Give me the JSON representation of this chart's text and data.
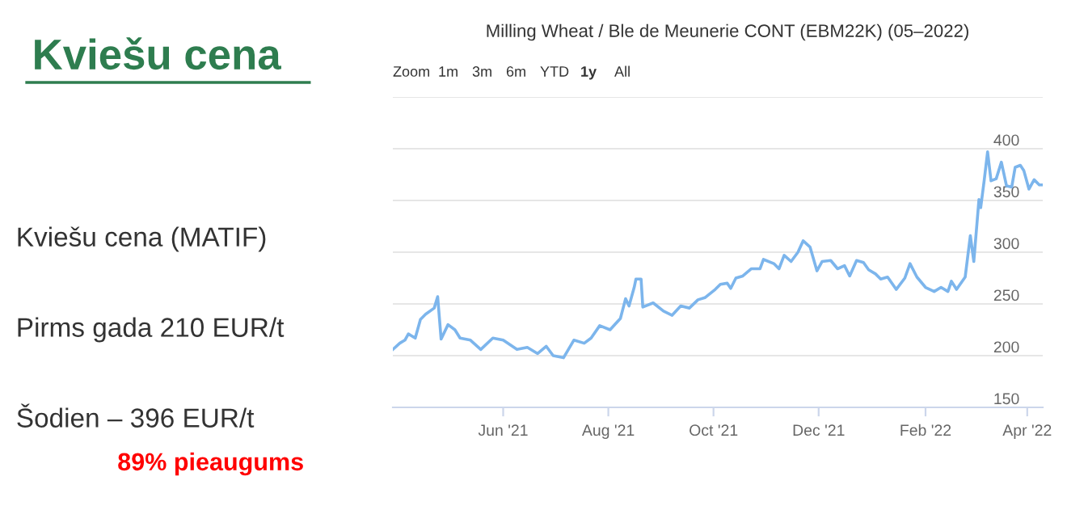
{
  "chart_data": {
    "type": "line",
    "title": "Milling Wheat / Ble de Meunerie CONT (EBM22K) (05–2022)",
    "annotations": [
      "Kviešu cena",
      "Kviešu cena (MATIF)",
      "Pirms gada 210 EUR/t",
      "Šodien – 396 EUR/t",
      "89% pieaugums",
      "Zoom",
      "1m",
      "3m",
      "6m",
      "YTD",
      "1y",
      "All"
    ],
    "series": [
      {
        "color": "#7cb5ec",
        "x": [
          "2021-03-29",
          "2021-04-02",
          "2021-04-05",
          "2021-04-07",
          "2021-04-11",
          "2021-04-14",
          "2021-04-17",
          "2021-04-22",
          "2021-04-24",
          "2021-04-26",
          "2021-04-30",
          "2021-05-04",
          "2021-05-07",
          "2021-05-13",
          "2021-05-19",
          "2021-05-26",
          "2021-06-01",
          "2021-06-09",
          "2021-06-15",
          "2021-06-21",
          "2021-06-26",
          "2021-06-30",
          "2021-07-06",
          "2021-07-12",
          "2021-07-18",
          "2021-07-22",
          "2021-07-27",
          "2021-08-02",
          "2021-08-08",
          "2021-08-11",
          "2021-08-13",
          "2021-08-16",
          "2021-08-17",
          "2021-08-20",
          "2021-08-21",
          "2021-08-27",
          "2021-09-02",
          "2021-09-07",
          "2021-09-12",
          "2021-09-17",
          "2021-09-22",
          "2021-09-26",
          "2021-10-02",
          "2021-10-05",
          "2021-10-09",
          "2021-10-11",
          "2021-10-14",
          "2021-10-18",
          "2021-10-23",
          "2021-10-28",
          "2021-10-30",
          "2021-11-05",
          "2021-11-08",
          "2021-11-11",
          "2021-11-15",
          "2021-11-19",
          "2021-11-22",
          "2021-11-26",
          "2021-11-30",
          "2021-12-03",
          "2021-12-08",
          "2021-12-12",
          "2021-12-16",
          "2021-12-19",
          "2021-12-23",
          "2021-12-27",
          "2021-12-30",
          "2022-01-03",
          "2022-01-06",
          "2022-01-10",
          "2022-01-15",
          "2022-01-20",
          "2022-01-23",
          "2022-01-27",
          "2022-02-01",
          "2022-02-06",
          "2022-02-10",
          "2022-02-14",
          "2022-02-16",
          "2022-02-19",
          "2022-02-24",
          "2022-02-27",
          "2022-03-01",
          "2022-03-04",
          "2022-03-05",
          "2022-03-07",
          "2022-03-09",
          "2022-03-11",
          "2022-03-14",
          "2022-03-17",
          "2022-03-20",
          "2022-03-23",
          "2022-03-25",
          "2022-03-28",
          "2022-03-30",
          "2022-04-02",
          "2022-04-05",
          "2022-04-08",
          "2022-04-10"
        ],
        "values": [
          206,
          212,
          215,
          221,
          217,
          235,
          240,
          246,
          257,
          216,
          230,
          225,
          217,
          215,
          206,
          217,
          215,
          206,
          208,
          202,
          209,
          200,
          198,
          215,
          212,
          217,
          229,
          225,
          236,
          255,
          248,
          266,
          274,
          274,
          247,
          251,
          243,
          239,
          248,
          246,
          254,
          256,
          264,
          269,
          270,
          265,
          275,
          277,
          284,
          284,
          293,
          289,
          284,
          297,
          291,
          300,
          311,
          305,
          282,
          291,
          292,
          284,
          287,
          277,
          292,
          290,
          283,
          279,
          274,
          276,
          264,
          275,
          289,
          276,
          266,
          262,
          266,
          262,
          272,
          264,
          276,
          316,
          291,
          351,
          343,
          369,
          397,
          369,
          371,
          387,
          364,
          363,
          382,
          384,
          379,
          361,
          370,
          365,
          365
        ]
      }
    ],
    "xlim": [
      "2021-03-29",
      "2022-04-10"
    ],
    "xticks": [
      {
        "value": "2021-06-01",
        "label": "Jun '21"
      },
      {
        "value": "2021-08-01",
        "label": "Aug '21"
      },
      {
        "value": "2021-10-01",
        "label": "Oct '21"
      },
      {
        "value": "2021-12-01",
        "label": "Dec '21"
      },
      {
        "value": "2022-02-01",
        "label": "Feb '22"
      },
      {
        "value": "2022-04-01",
        "label": "Apr '22"
      }
    ],
    "ylim": [
      150,
      450
    ],
    "yticks": [
      150,
      200,
      250,
      300,
      350,
      400,
      {
        "value": 450,
        "label": null
      }
    ],
    "grid": "y",
    "marker": "none",
    "line_style": "solid",
    "legend": false
  }
}
